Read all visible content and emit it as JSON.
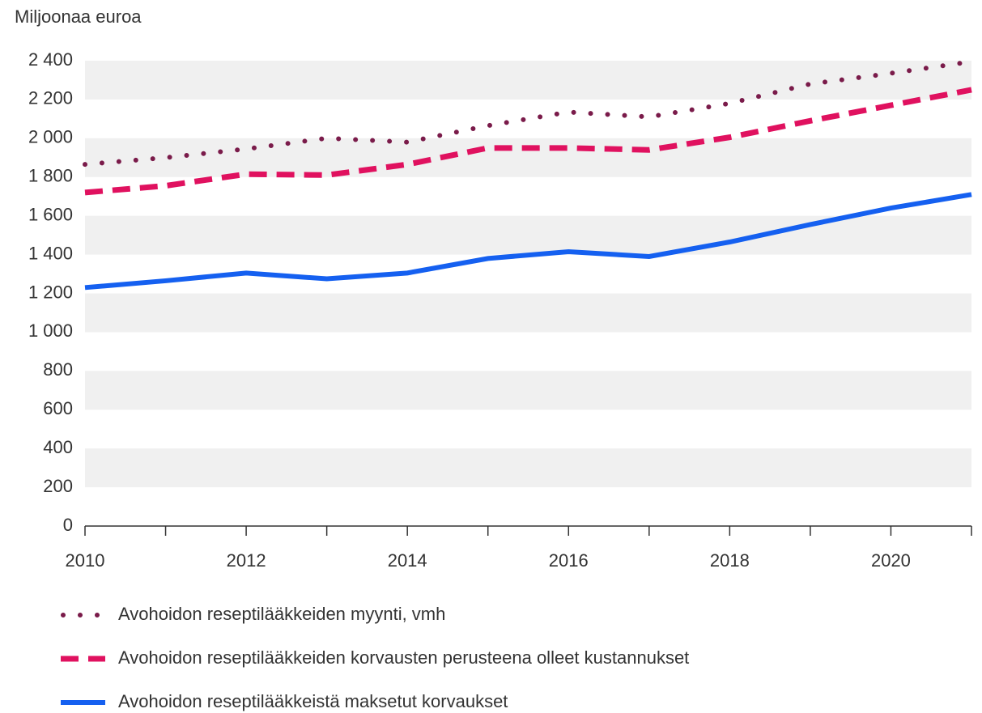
{
  "chart_data": {
    "type": "line",
    "y_axis_label": "Miljoonaa euroa",
    "x": [
      2010,
      2011,
      2012,
      2013,
      2014,
      2015,
      2016,
      2017,
      2018,
      2019,
      2020,
      2021
    ],
    "series": [
      {
        "name": "Avohoidon reseptilääkkeiden myynti, vmh",
        "color": "#7a1b4a",
        "style": "dotted",
        "values": [
          1865,
          1900,
          1945,
          2000,
          1980,
          2065,
          2135,
          2110,
          2180,
          2280,
          2335,
          2395
        ]
      },
      {
        "name": "Avohoidon reseptilääkkeiden korvausten perusteena olleet kustannukset",
        "color": "#e0115f",
        "style": "dashed",
        "values": [
          1720,
          1755,
          1815,
          1810,
          1865,
          1950,
          1950,
          1940,
          2005,
          2090,
          2170,
          2250
        ]
      },
      {
        "name": "Avohoidon reseptilääkkeistä maksetut korvaukset",
        "color": "#1560f0",
        "style": "solid",
        "values": [
          1230,
          1265,
          1305,
          1275,
          1305,
          1380,
          1415,
          1390,
          1465,
          1555,
          1640,
          1710
        ]
      }
    ],
    "xlim": [
      2010,
      2021
    ],
    "xticks": [
      2010,
      2012,
      2014,
      2016,
      2018,
      2020
    ],
    "ylim": [
      0,
      2400
    ],
    "yticks": [
      0,
      200,
      400,
      600,
      800,
      {
        "value": 1000,
        "label": "1 000"
      },
      {
        "value": 1200,
        "label": "1 200"
      },
      {
        "value": 1400,
        "label": "1 400"
      },
      {
        "value": 1600,
        "label": "1 600"
      },
      {
        "value": 1800,
        "label": "1 800"
      },
      {
        "value": 2000,
        "label": "2 000"
      },
      {
        "value": 2200,
        "label": "2 200"
      },
      {
        "value": 2400,
        "label": "2 400"
      }
    ],
    "grid": "bands",
    "legend": "bottom"
  }
}
